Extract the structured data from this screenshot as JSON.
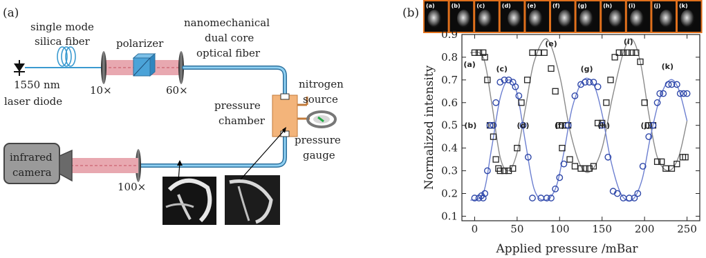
{
  "panel_a": {
    "panel_label": "(a)",
    "fiber_label_1": "single mode",
    "fiber_label_2": "silica fiber",
    "polarizer": "polarizer",
    "nano_1": "nanomechanical",
    "nano_2": "dual core",
    "nano_3": "optical fiber",
    "laser_1": "1550 nm",
    "laser_2": "laser diode",
    "lens_10": "10×",
    "lens_60": "60×",
    "lens_100": "100×",
    "nitrogen_1": "nitrogen",
    "nitrogen_2": "source",
    "chamber_1": "pressure",
    "chamber_2": "chamber",
    "gauge_1": "pressure",
    "gauge_2": "gauge",
    "camera_1": "infrared",
    "camera_2": "camera",
    "colors": {
      "fiber": "#3a9ad0",
      "beam": "#e8a8b0",
      "chamber": "#f3b47a",
      "polarizer": "#4ba3d8",
      "camera": "#9a9a9a"
    }
  },
  "panel_b": {
    "panel_label": "(b)",
    "thumbnails": [
      "(a)",
      "(b)",
      "(c)",
      "(d)",
      "(e)",
      "(f)",
      "(g)",
      "(h)",
      "(i)",
      "(j)",
      "(k)"
    ],
    "thumbnail_border_color": "#e0701c"
  },
  "chart_data": {
    "type": "scatter",
    "xlabel": "Applied pressure /mBar",
    "ylabel": "Normalized intensity",
    "xlim": [
      -15,
      265
    ],
    "ylim": [
      0.08,
      0.9
    ],
    "xticks": [
      0,
      50,
      100,
      150,
      200,
      250
    ],
    "yticks": [
      0.1,
      0.2,
      0.3,
      0.4,
      0.5,
      0.6,
      0.7,
      0.8,
      0.9
    ],
    "grid": false,
    "series": [
      {
        "marker": "square",
        "color": "#222222",
        "points": [
          [
            0,
            0.82
          ],
          [
            5,
            0.82
          ],
          [
            10,
            0.82
          ],
          [
            12,
            0.8
          ],
          [
            15,
            0.7
          ],
          [
            18,
            0.5
          ],
          [
            20,
            0.5
          ],
          [
            22,
            0.45
          ],
          [
            25,
            0.35
          ],
          [
            28,
            0.31
          ],
          [
            30,
            0.3
          ],
          [
            35,
            0.3
          ],
          [
            40,
            0.3
          ],
          [
            45,
            0.31
          ],
          [
            50,
            0.4
          ],
          [
            55,
            0.6
          ],
          [
            62,
            0.7
          ],
          [
            68,
            0.82
          ],
          [
            75,
            0.82
          ],
          [
            82,
            0.82
          ],
          [
            90,
            0.75
          ],
          [
            95,
            0.65
          ],
          [
            100,
            0.5
          ],
          [
            103,
            0.4
          ],
          [
            108,
            0.5
          ],
          [
            110,
            0.5
          ],
          [
            112,
            0.35
          ],
          [
            118,
            0.32
          ],
          [
            125,
            0.31
          ],
          [
            130,
            0.31
          ],
          [
            135,
            0.31
          ],
          [
            140,
            0.32
          ],
          [
            145,
            0.51
          ],
          [
            150,
            0.51
          ],
          [
            155,
            0.6
          ],
          [
            160,
            0.7
          ],
          [
            165,
            0.8
          ],
          [
            170,
            0.82
          ],
          [
            175,
            0.82
          ],
          [
            180,
            0.82
          ],
          [
            185,
            0.82
          ],
          [
            190,
            0.82
          ],
          [
            195,
            0.78
          ],
          [
            200,
            0.6
          ],
          [
            205,
            0.5
          ],
          [
            210,
            0.5
          ],
          [
            215,
            0.34
          ],
          [
            220,
            0.34
          ],
          [
            225,
            0.31
          ],
          [
            232,
            0.31
          ],
          [
            238,
            0.33
          ],
          [
            245,
            0.36
          ],
          [
            248,
            0.36
          ]
        ],
        "fit": [
          [
            -5,
            0.82
          ],
          [
            10,
            0.8
          ],
          [
            20,
            0.6
          ],
          [
            30,
            0.36
          ],
          [
            40,
            0.3
          ],
          [
            50,
            0.38
          ],
          [
            60,
            0.58
          ],
          [
            70,
            0.78
          ],
          [
            85,
            0.88
          ],
          [
            100,
            0.72
          ],
          [
            112,
            0.48
          ],
          [
            125,
            0.32
          ],
          [
            137,
            0.3
          ],
          [
            150,
            0.4
          ],
          [
            162,
            0.62
          ],
          [
            175,
            0.82
          ],
          [
            185,
            0.88
          ],
          [
            195,
            0.78
          ],
          [
            205,
            0.55
          ],
          [
            215,
            0.36
          ],
          [
            228,
            0.3
          ],
          [
            240,
            0.36
          ],
          [
            250,
            0.52
          ]
        ]
      },
      {
        "marker": "circle",
        "color": "#2d46a8",
        "points": [
          [
            0,
            0.18
          ],
          [
            5,
            0.18
          ],
          [
            8,
            0.19
          ],
          [
            10,
            0.18
          ],
          [
            12,
            0.2
          ],
          [
            15,
            0.3
          ],
          [
            18,
            0.5
          ],
          [
            22,
            0.5
          ],
          [
            25,
            0.6
          ],
          [
            30,
            0.69
          ],
          [
            35,
            0.7
          ],
          [
            40,
            0.7
          ],
          [
            45,
            0.69
          ],
          [
            48,
            0.67
          ],
          [
            52,
            0.63
          ],
          [
            57,
            0.5
          ],
          [
            63,
            0.36
          ],
          [
            68,
            0.18
          ],
          [
            78,
            0.18
          ],
          [
            85,
            0.18
          ],
          [
            90,
            0.18
          ],
          [
            95,
            0.22
          ],
          [
            100,
            0.27
          ],
          [
            105,
            0.33
          ],
          [
            110,
            0.5
          ],
          [
            118,
            0.63
          ],
          [
            125,
            0.68
          ],
          [
            130,
            0.69
          ],
          [
            135,
            0.69
          ],
          [
            140,
            0.69
          ],
          [
            145,
            0.67
          ],
          [
            150,
            0.5
          ],
          [
            157,
            0.36
          ],
          [
            163,
            0.21
          ],
          [
            168,
            0.2
          ],
          [
            175,
            0.18
          ],
          [
            182,
            0.18
          ],
          [
            188,
            0.18
          ],
          [
            192,
            0.2
          ],
          [
            198,
            0.32
          ],
          [
            205,
            0.45
          ],
          [
            210,
            0.5
          ],
          [
            215,
            0.6
          ],
          [
            218,
            0.64
          ],
          [
            222,
            0.64
          ],
          [
            228,
            0.68
          ],
          [
            232,
            0.68
          ],
          [
            238,
            0.68
          ],
          [
            242,
            0.64
          ],
          [
            246,
            0.64
          ],
          [
            250,
            0.64
          ]
        ],
        "fit": [
          [
            -5,
            0.17
          ],
          [
            10,
            0.2
          ],
          [
            20,
            0.4
          ],
          [
            30,
            0.62
          ],
          [
            40,
            0.7
          ],
          [
            50,
            0.64
          ],
          [
            60,
            0.42
          ],
          [
            70,
            0.22
          ],
          [
            82,
            0.17
          ],
          [
            95,
            0.22
          ],
          [
            105,
            0.38
          ],
          [
            115,
            0.58
          ],
          [
            128,
            0.7
          ],
          [
            140,
            0.68
          ],
          [
            150,
            0.55
          ],
          [
            160,
            0.35
          ],
          [
            172,
            0.2
          ],
          [
            185,
            0.17
          ],
          [
            197,
            0.26
          ],
          [
            207,
            0.45
          ],
          [
            218,
            0.62
          ],
          [
            230,
            0.7
          ],
          [
            240,
            0.66
          ],
          [
            250,
            0.52
          ]
        ]
      }
    ],
    "annotations": [
      {
        "text": "(a)",
        "x": -6,
        "y": 0.77
      },
      {
        "text": "(b)",
        "x": -5,
        "y": 0.5
      },
      {
        "text": "(c)",
        "x": 32,
        "y": 0.75
      },
      {
        "text": "(d)",
        "x": 57,
        "y": 0.5
      },
      {
        "text": "(e)",
        "x": 90,
        "y": 0.86
      },
      {
        "text": "(f)",
        "x": 100,
        "y": 0.5
      },
      {
        "text": "(g)",
        "x": 132,
        "y": 0.75
      },
      {
        "text": "(h)",
        "x": 152,
        "y": 0.5
      },
      {
        "text": "(i)",
        "x": 181,
        "y": 0.87
      },
      {
        "text": "(j)",
        "x": 201,
        "y": 0.5
      },
      {
        "text": "(k)",
        "x": 227,
        "y": 0.76
      }
    ]
  }
}
